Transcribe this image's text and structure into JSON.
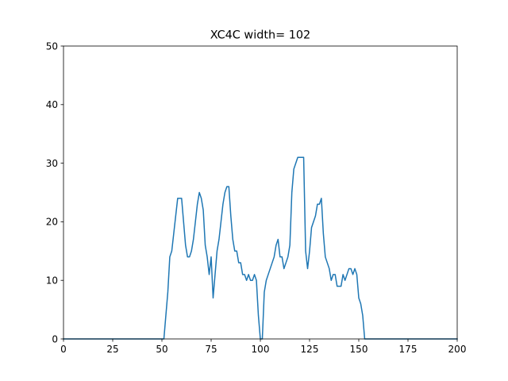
{
  "chart_data": {
    "type": "line",
    "title": "XC4C width= 102",
    "xlabel": "",
    "ylabel": "",
    "xlim": [
      0,
      200
    ],
    "ylim": [
      0,
      50
    ],
    "xticks": [
      "0",
      "25",
      "50",
      "75",
      "100",
      "125",
      "150",
      "175",
      "200"
    ],
    "yticks": [
      "0",
      "10",
      "20",
      "30",
      "40",
      "50"
    ],
    "grid": false,
    "legend": "none",
    "colors": {
      "line": "#1f77b4",
      "axes": "#000000",
      "background": "#ffffff"
    },
    "series": [
      {
        "x": [
          0,
          51,
          52,
          53,
          54,
          55,
          56,
          57,
          58,
          59,
          60,
          61,
          62,
          63,
          64,
          65,
          66,
          67,
          68,
          69,
          70,
          71,
          72,
          73,
          74,
          75,
          76,
          77,
          78,
          79,
          80,
          81,
          82,
          83,
          84,
          85,
          86,
          87,
          88,
          89,
          90,
          91,
          92,
          93,
          94,
          95,
          96,
          97,
          98,
          99,
          100,
          101,
          102,
          103,
          104,
          105,
          106,
          107,
          108,
          109,
          110,
          111,
          112,
          113,
          114,
          115,
          116,
          117,
          118,
          119,
          120,
          121,
          122,
          123,
          124,
          125,
          126,
          127,
          128,
          129,
          130,
          131,
          132,
          133,
          134,
          135,
          136,
          137,
          138,
          139,
          140,
          141,
          142,
          143,
          144,
          145,
          146,
          147,
          148,
          149,
          150,
          151,
          152,
          153,
          200
        ],
        "y": [
          0,
          0,
          4,
          8,
          14,
          15,
          18,
          21,
          24,
          24,
          24,
          20,
          16,
          14,
          14,
          15,
          17,
          20,
          23,
          25,
          24,
          22,
          16,
          14,
          11,
          14,
          7,
          11,
          15,
          17,
          20,
          23,
          25,
          26,
          26,
          21,
          17,
          15,
          15,
          13,
          13,
          11,
          11,
          10,
          11,
          10,
          10,
          11,
          10,
          4,
          0,
          0,
          8,
          10,
          11,
          12,
          13,
          14,
          16,
          17,
          14,
          14,
          12,
          13,
          14,
          16,
          25,
          29,
          30,
          31,
          31,
          31,
          31,
          15,
          12,
          15,
          19,
          20,
          21,
          23,
          23,
          24,
          18,
          14,
          13,
          12,
          10,
          11,
          11,
          9,
          9,
          9,
          11,
          10,
          11,
          12,
          12,
          11,
          12,
          11,
          7,
          6,
          4,
          0,
          0
        ]
      }
    ]
  }
}
